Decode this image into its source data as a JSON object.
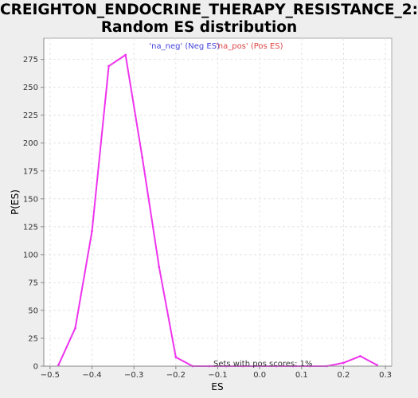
{
  "chart_data": {
    "type": "line",
    "title_lines": [
      "CREIGHTON_ENDOCRINE_THERAPY_RESISTANCE_2:",
      "Random ES distribution"
    ],
    "xlabel": "ES",
    "ylabel": "P(ES)",
    "xlim": [
      -0.515,
      0.315
    ],
    "ylim": [
      0,
      294
    ],
    "xticks": [
      -0.5,
      -0.4,
      -0.3,
      -0.2,
      -0.1,
      0.0,
      0.1,
      0.2,
      0.3
    ],
    "xtick_labels": [
      "−0.5",
      "−0.4",
      "−0.3",
      "−0.2",
      "−0.1",
      "0.0",
      "0.1",
      "0.2",
      "0.3"
    ],
    "yticks": [
      0,
      25,
      50,
      75,
      100,
      125,
      150,
      175,
      200,
      225,
      250,
      275
    ],
    "ytick_labels": [
      "0",
      "25",
      "50",
      "75",
      "100",
      "125",
      "150",
      "175",
      "200",
      "225",
      "250",
      "275"
    ],
    "grid": true,
    "legend": [
      {
        "label": "'na_neg' (Neg ES)",
        "color": "#4444dd"
      },
      {
        "label": "'na_pos' (Pos ES)",
        "color": "#dd4444"
      }
    ],
    "annotation": "Sets with pos scores: 1%",
    "series": [
      {
        "name": "Random ES distribution",
        "color": "#ee33ee",
        "x": [
          -0.48,
          -0.44,
          -0.4,
          -0.36,
          -0.32,
          -0.28,
          -0.24,
          -0.2,
          -0.16,
          -0.12,
          -0.08,
          -0.04,
          0.0,
          0.04,
          0.08,
          0.12,
          0.16,
          0.2,
          0.24,
          0.28
        ],
        "y": [
          1,
          34,
          121,
          269,
          279,
          187,
          89,
          8,
          0,
          0,
          0,
          0,
          0,
          0,
          0,
          0,
          0,
          3,
          9,
          1
        ]
      }
    ]
  }
}
